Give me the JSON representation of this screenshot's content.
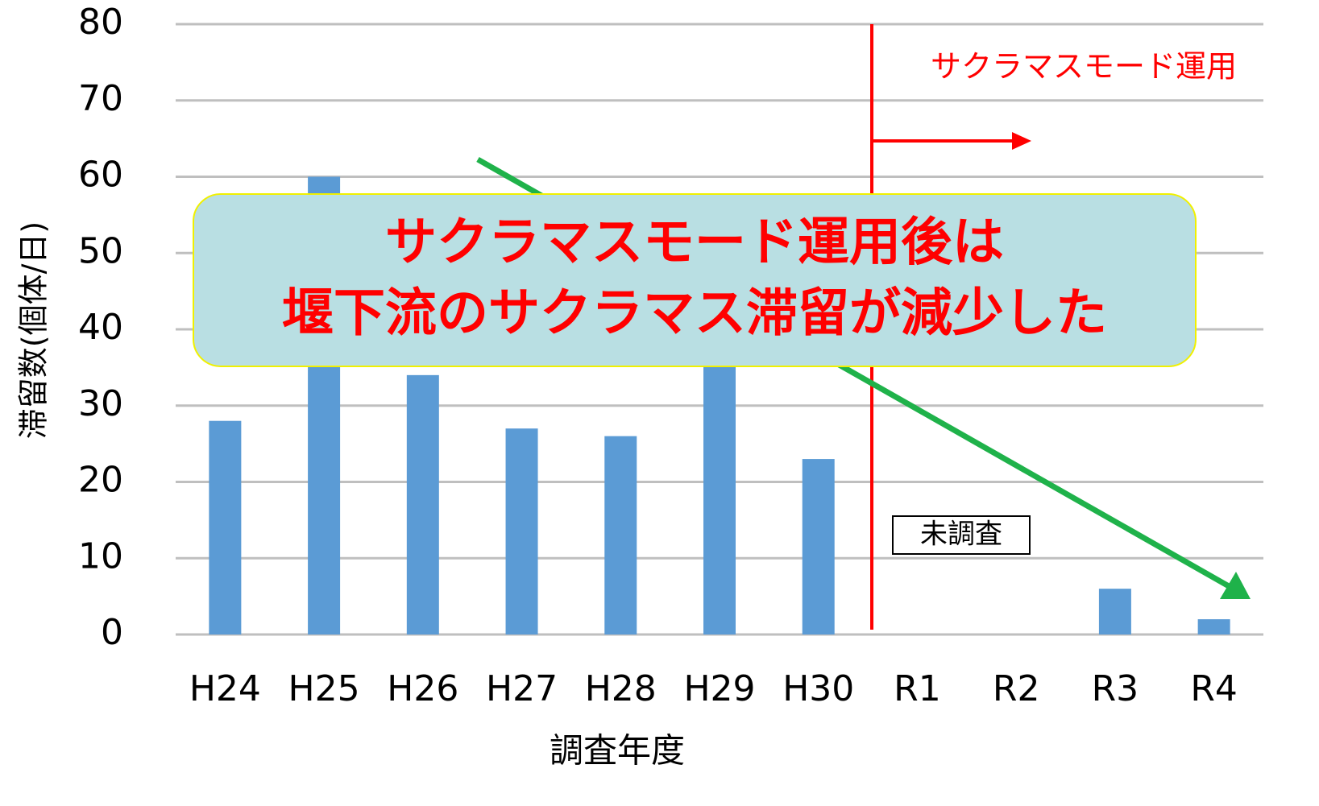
{
  "chart_data": {
    "type": "bar",
    "categories": [
      "H24",
      "H25",
      "H26",
      "H27",
      "H28",
      "H29",
      "H30",
      "R1",
      "R2",
      "R3",
      "R4"
    ],
    "values": [
      28,
      60,
      34,
      27,
      26,
      45,
      23,
      null,
      null,
      6,
      2
    ],
    "color": "#5b9bd5",
    "ylim": [
      0,
      80
    ],
    "yticks": [
      0,
      10,
      20,
      30,
      40,
      50,
      60,
      70,
      80
    ],
    "grid": true,
    "y_label": "滞留数(個体/日)",
    "x_label": "調査年度",
    "annotations": {
      "mode": "サクラマスモード運用",
      "callout": [
        "サクラマスモード運用後は",
        "堰下流のサクラマス滞留が減少した"
      ],
      "not_surveyed": "未調査"
    }
  }
}
